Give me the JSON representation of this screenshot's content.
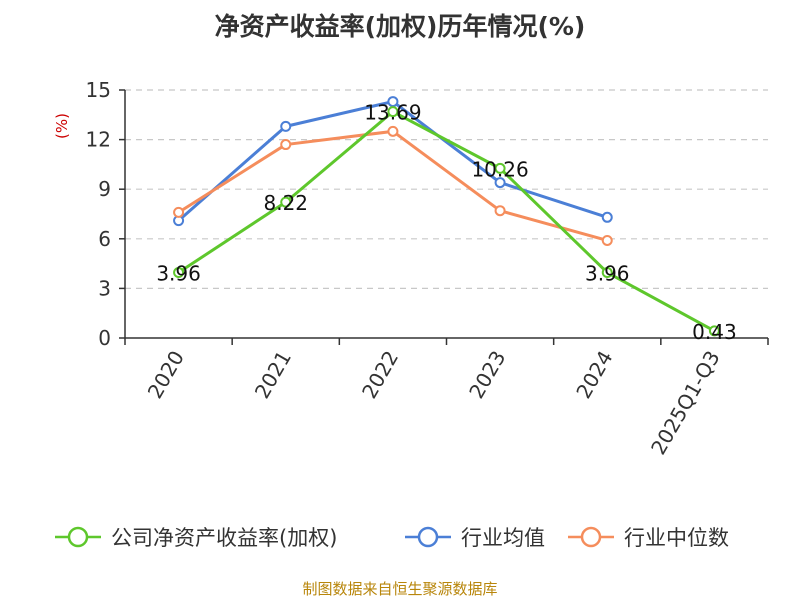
{
  "chart_data": {
    "type": "line",
    "title": "净资产收益率(加权)历年情况(%)",
    "ylabel": "(%)",
    "categories": [
      "2020",
      "2021",
      "2022",
      "2023",
      "2024",
      "2025Q1-Q3"
    ],
    "yticks": [
      "0",
      "3",
      "6",
      "9",
      "12",
      "15"
    ],
    "ylim": [
      0,
      15
    ],
    "grid": true,
    "legend_position": "bottom",
    "series": [
      {
        "name": "公司净资产收益率(加权)",
        "color": "#5ec72c",
        "values": [
          3.96,
          8.22,
          13.69,
          10.26,
          3.96,
          0.43
        ],
        "labels": [
          "3.96",
          "8.22",
          "13.69",
          "10.26",
          "3.96",
          "0.43"
        ]
      },
      {
        "name": "行业均值",
        "color": "#4b7fd6",
        "values": [
          7.1,
          12.8,
          14.3,
          9.4,
          7.3,
          null
        ]
      },
      {
        "name": "行业中位数",
        "color": "#f58d5c",
        "values": [
          7.6,
          11.7,
          12.5,
          7.7,
          5.9,
          null
        ]
      }
    ]
  },
  "footer": {
    "source": "制图数据来自恒生聚源数据库"
  }
}
